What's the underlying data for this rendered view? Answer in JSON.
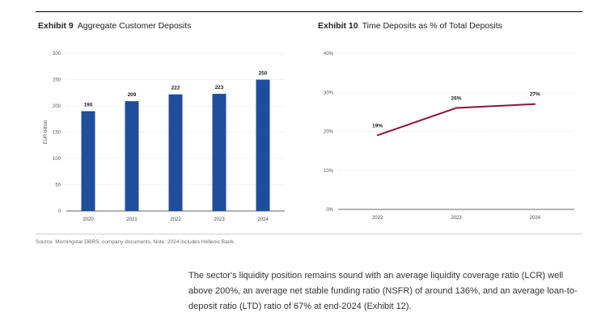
{
  "exhibit9": {
    "label": "Exhibit 9",
    "title": "Aggregate Customer Deposits"
  },
  "exhibit10": {
    "label": "Exhibit 10",
    "title": "Time Deposits as % of Total Deposits"
  },
  "source": "Source: Morningstar DBRS, company documents. Note: 2024 includes Hellenic Bank.",
  "paragraph": "The sector's liquidity position remains sound with an average liquidity coverage ratio (LCR) well above 200%, an average net stable funding ratio (NSFR) of around 136%, and an average loan-to-deposit ratio (LTD) ratio of 67% at end-2024 (Exhibit 12).",
  "chart_data": [
    {
      "type": "bar",
      "title": "Aggregate Customer Deposits",
      "categories": [
        "2020",
        "2021",
        "2022",
        "2023",
        "2024"
      ],
      "values": [
        190,
        209,
        222,
        223,
        250
      ],
      "data_labels": [
        "190",
        "209",
        "222",
        "223",
        "250"
      ],
      "ylabel": "EUR billion",
      "ylim": [
        0,
        300
      ],
      "yticks": [
        "0",
        "50",
        "100",
        "150",
        "200",
        "250",
        "300"
      ],
      "grid": true,
      "color": "#1f4e9c"
    },
    {
      "type": "line",
      "title": "Time Deposits as % of Total Deposits",
      "x": [
        "2022",
        "2023",
        "2024"
      ],
      "values": [
        19,
        26,
        27
      ],
      "data_labels": [
        "19%",
        "26%",
        "27%"
      ],
      "ylim": [
        0,
        40
      ],
      "yticks": [
        "0%",
        "10%",
        "20%",
        "30%",
        "40%"
      ],
      "grid": true,
      "color": "#8b1538"
    }
  ]
}
